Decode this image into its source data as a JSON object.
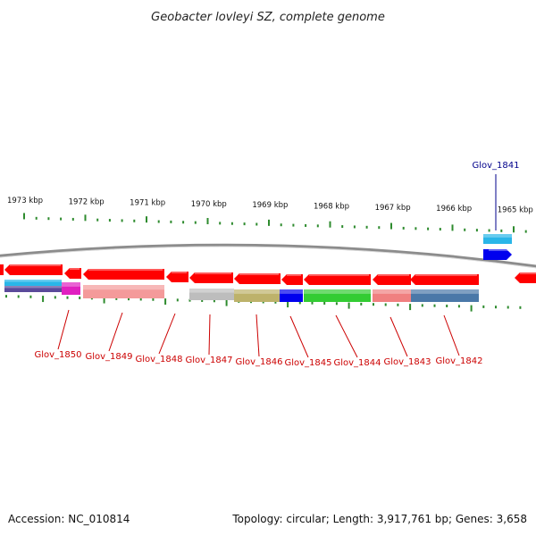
{
  "title": "Geobacter lovleyi SZ, complete genome",
  "footer": {
    "accession": "Accession: NC_010814",
    "summary": "Topology: circular; Length: 3,917,761 bp; Genes: 3,658"
  },
  "colors": {
    "backbone": "#8c8c8c",
    "tick": "#2e8b2e",
    "forward_label": "#00008b",
    "reverse_label": "#cc0000",
    "gene_arrow": "#ff0000"
  },
  "diagram_data": {
    "kbp_ticks": [
      "1973 kbp",
      "1972 kbp",
      "1971 kbp",
      "1970 kbp",
      "1969 kbp",
      "1968 kbp",
      "1967 kbp",
      "1966 kbp",
      "1965 kbp"
    ],
    "genes": [
      {
        "label": "Glov_1841",
        "strand": "+",
        "annotation_colors": [
          "#29b6e8"
        ]
      },
      {
        "label": "Glov_1842",
        "strand": "-",
        "annotation_colors": [
          "#4a78a8"
        ]
      },
      {
        "label": "Glov_1843",
        "strand": "-",
        "annotation_colors": [
          "#f08080"
        ]
      },
      {
        "label": "Glov_1844",
        "strand": "-",
        "annotation_colors": [
          "#33cc33"
        ]
      },
      {
        "label": "Glov_1845",
        "strand": "-",
        "annotation_colors": [
          "#0000ee"
        ]
      },
      {
        "label": "Glov_1846",
        "strand": "-",
        "annotation_colors": [
          "#bdb26b"
        ]
      },
      {
        "label": "Glov_1847",
        "strand": "-",
        "annotation_colors": [
          "#bdbdbd"
        ]
      },
      {
        "label": "Glov_1848",
        "strand": "-",
        "annotation_colors": []
      },
      {
        "label": "Glov_1849",
        "strand": "-",
        "annotation_colors": [
          "#f49a9a"
        ]
      },
      {
        "label": "Glov_1850",
        "strand": "-",
        "annotation_colors": [
          "#e020c0"
        ]
      },
      {
        "label": "",
        "strand": "-",
        "annotation_colors": [
          "#29b6e8",
          "#5a4a9a"
        ]
      },
      {
        "label": "",
        "strand": "-",
        "annotation_colors": []
      }
    ]
  }
}
